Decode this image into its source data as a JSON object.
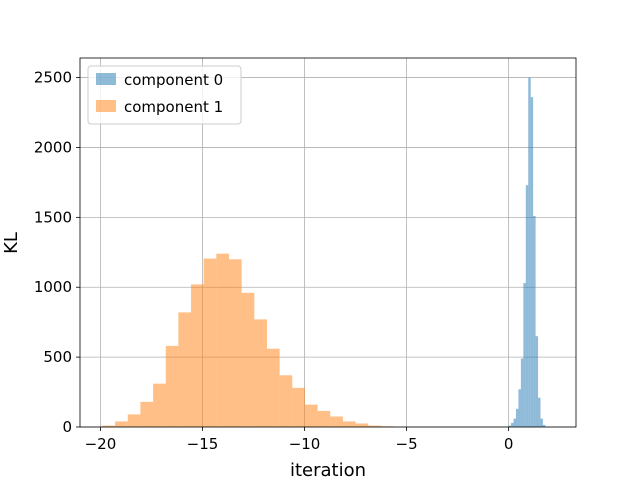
{
  "chart_data": {
    "type": "histogram",
    "title": "",
    "xlabel": "iteration",
    "ylabel": "KL",
    "xlim": [
      -21,
      3.3
    ],
    "ylim": [
      0,
      2640
    ],
    "grid": true,
    "legend_position": "top-left",
    "x_ticks": [
      -20,
      -15,
      -10,
      -5,
      0
    ],
    "x_tick_labels": [
      "−20",
      "−15",
      "−10",
      "−5",
      "0"
    ],
    "y_ticks": [
      0,
      500,
      1000,
      1500,
      2000,
      2500
    ],
    "y_tick_labels": [
      "0",
      "500",
      "1000",
      "1500",
      "2000",
      "2500"
    ],
    "series": [
      {
        "name": "component 0",
        "color": "#1f77b4",
        "opacity": 0.5,
        "bin_width": 0.12,
        "bins": [
          {
            "x0": 0.0,
            "count": 10
          },
          {
            "x0": 0.12,
            "count": 30
          },
          {
            "x0": 0.24,
            "count": 60
          },
          {
            "x0": 0.36,
            "count": 130
          },
          {
            "x0": 0.48,
            "count": 270
          },
          {
            "x0": 0.6,
            "count": 490
          },
          {
            "x0": 0.72,
            "count": 1030
          },
          {
            "x0": 0.84,
            "count": 1730
          },
          {
            "x0": 0.96,
            "count": 2500
          },
          {
            "x0": 1.08,
            "count": 2360
          },
          {
            "x0": 1.2,
            "count": 1510
          },
          {
            "x0": 1.32,
            "count": 650
          },
          {
            "x0": 1.44,
            "count": 210
          },
          {
            "x0": 1.56,
            "count": 60
          },
          {
            "x0": 1.68,
            "count": 15
          }
        ]
      },
      {
        "name": "component 1",
        "color": "#ff7f0e",
        "opacity": 0.5,
        "bin_width": 0.62,
        "bins": [
          {
            "x0": -19.9,
            "count": 10
          },
          {
            "x0": -19.28,
            "count": 40
          },
          {
            "x0": -18.66,
            "count": 90
          },
          {
            "x0": -18.04,
            "count": 180
          },
          {
            "x0": -17.42,
            "count": 310
          },
          {
            "x0": -16.8,
            "count": 580
          },
          {
            "x0": -16.18,
            "count": 820
          },
          {
            "x0": -15.56,
            "count": 1020
          },
          {
            "x0": -14.94,
            "count": 1205
          },
          {
            "x0": -14.32,
            "count": 1240
          },
          {
            "x0": -13.7,
            "count": 1200
          },
          {
            "x0": -13.08,
            "count": 960
          },
          {
            "x0": -12.46,
            "count": 770
          },
          {
            "x0": -11.84,
            "count": 560
          },
          {
            "x0": -11.22,
            "count": 370
          },
          {
            "x0": -10.6,
            "count": 280
          },
          {
            "x0": -9.98,
            "count": 160
          },
          {
            "x0": -9.36,
            "count": 115
          },
          {
            "x0": -8.74,
            "count": 75
          },
          {
            "x0": -8.12,
            "count": 40
          },
          {
            "x0": -7.5,
            "count": 25
          },
          {
            "x0": -6.88,
            "count": 10
          },
          {
            "x0": -6.26,
            "count": 5
          }
        ]
      }
    ]
  }
}
